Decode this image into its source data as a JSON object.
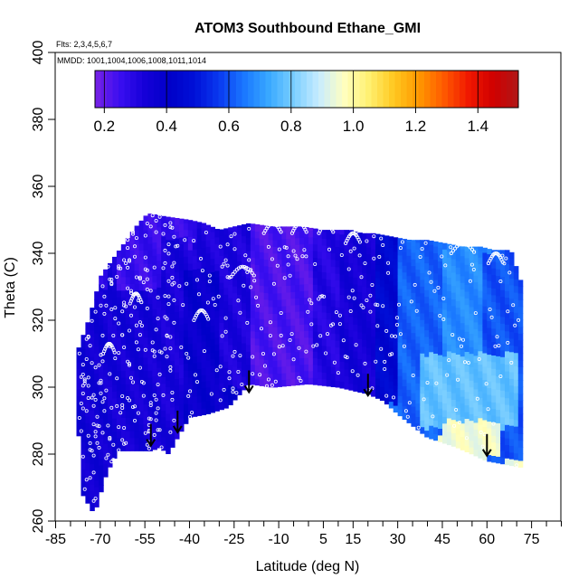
{
  "chart_data": {
    "type": "heatmap",
    "title": "ATOM3 Southbound Ethane_GMI",
    "annotations": {
      "flights": "Flts: 2,3,4,5,6,7",
      "dates": "MMDD: 1001,1004,1006,1008,1011,1014"
    },
    "xlabel": "Latitude (deg N)",
    "ylabel": "Theta (C)",
    "xlim": [
      -85,
      85
    ],
    "ylim": [
      260,
      400
    ],
    "x_ticks": [
      -85,
      -70,
      -55,
      -40,
      -25,
      -10,
      5,
      15,
      30,
      45,
      60,
      75
    ],
    "x_minor_ticks": [
      -80,
      -75,
      -65,
      -60,
      -50,
      -45,
      -35,
      -30,
      -20,
      -15,
      -5,
      0,
      10,
      20,
      25,
      35,
      40,
      50,
      55,
      65,
      70,
      80,
      85
    ],
    "y_ticks": [
      260,
      280,
      300,
      320,
      340,
      360,
      380,
      400
    ],
    "grid": false,
    "legend": {
      "type": "colorbar",
      "placement": "top",
      "min": 0.17,
      "max": 1.53,
      "ticks": [
        "0.2",
        "0.4",
        "0.6",
        "0.8",
        "1.0",
        "1.2",
        "1.4"
      ],
      "tick_values": [
        0.2,
        0.4,
        0.6,
        0.8,
        1.0,
        1.2,
        1.4
      ],
      "colors": [
        "#7a22e6",
        "#3a0ef0",
        "#1500d8",
        "#0000c8",
        "#0010d8",
        "#0a3af0",
        "#1a78ff",
        "#3aaaff",
        "#7ccfff",
        "#c8ecff",
        "#ffffc0",
        "#fff070",
        "#ffc820",
        "#ff9800",
        "#ff5a00",
        "#f01800",
        "#d00000",
        "#b01818"
      ]
    },
    "regions": [
      {
        "lat_min": -78,
        "lat_max": -68,
        "theta_min": 265,
        "theta_max": 330,
        "value": 0.35
      },
      {
        "lat_min": -68,
        "lat_max": -50,
        "theta_min": 280,
        "theta_max": 345,
        "value": 0.34
      },
      {
        "lat_min": -65,
        "lat_max": -50,
        "theta_min": 330,
        "theta_max": 352,
        "value": 0.26
      },
      {
        "lat_min": -50,
        "lat_max": -40,
        "theta_min": 285,
        "theta_max": 345,
        "value": 0.33
      },
      {
        "lat_min": -42,
        "lat_max": -30,
        "theta_min": 290,
        "theta_max": 335,
        "value": 0.38
      },
      {
        "lat_min": -30,
        "lat_max": -20,
        "theta_min": 300,
        "theta_max": 345,
        "value": 0.32
      },
      {
        "lat_min": -20,
        "lat_max": 2,
        "theta_min": 300,
        "theta_max": 348,
        "value": 0.23
      },
      {
        "lat_min": 2,
        "lat_max": 10,
        "theta_min": 300,
        "theta_max": 347,
        "value": 0.3
      },
      {
        "lat_min": 10,
        "lat_max": 22,
        "theta_min": 298,
        "theta_max": 346,
        "value": 0.34
      },
      {
        "lat_min": 22,
        "lat_max": 30,
        "theta_min": 295,
        "theta_max": 345,
        "value": 0.45
      },
      {
        "lat_min": 30,
        "lat_max": 45,
        "theta_min": 285,
        "theta_max": 345,
        "value": 0.62
      },
      {
        "lat_min": 45,
        "lat_max": 58,
        "theta_min": 283,
        "theta_max": 342,
        "value": 0.68
      },
      {
        "lat_min": 58,
        "lat_max": 72,
        "theta_min": 278,
        "theta_max": 340,
        "value": 0.6
      },
      {
        "lat_min": 45,
        "lat_max": 65,
        "theta_min": 279,
        "theta_max": 290,
        "value": 0.95
      },
      {
        "lat_min": 38,
        "lat_max": 70,
        "theta_min": 288,
        "theta_max": 310,
        "value": 0.78
      }
    ],
    "markers": [
      {
        "lat": -53,
        "theta": 289,
        "type": "arrow-down"
      },
      {
        "lat": -44,
        "theta": 293,
        "type": "arrow-down"
      },
      {
        "lat": -20,
        "theta": 305,
        "type": "arrow-down"
      },
      {
        "lat": 20,
        "theta": 304,
        "type": "arrow-down"
      },
      {
        "lat": 60,
        "theta": 286,
        "type": "arrow-down"
      }
    ]
  }
}
